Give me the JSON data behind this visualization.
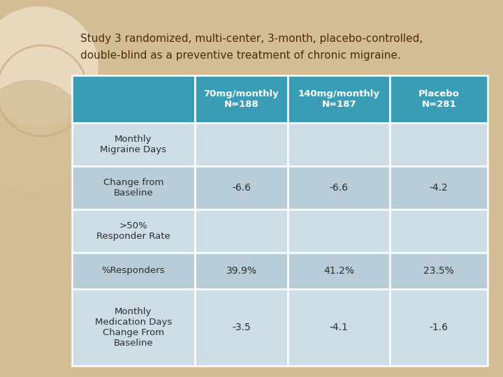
{
  "title_line1": "Study 3 randomized, multi-center, 3-month, placebo-controlled,",
  "title_line2": "double-blind as a preventive treatment of chronic migraine.",
  "title_color": "#4a2c0a",
  "bg_color": "#d4bc96",
  "header_bg": "#3a9db5",
  "header_text_color": "#ffffff",
  "row_text_color": "#2c2c2c",
  "col_headers": [
    "70mg/monthly\nN=188",
    "140mg/monthly\nN=187",
    "Placebo\nN=281"
  ],
  "row_labels": [
    "Monthly\nMigraine Days",
    "Change from\nBaseline",
    ">50%\nResponder Rate",
    "%Responders",
    "Monthly\nMedication Days\nChange From\nBaseline"
  ],
  "cell_data": [
    [
      "",
      "",
      ""
    ],
    [
      "-6.6",
      "-6.6",
      "-4.2"
    ],
    [
      "",
      "",
      ""
    ],
    [
      "39.9%",
      "41.2%",
      "23.5%"
    ],
    [
      "-3.5",
      "-4.1",
      "-1.6"
    ]
  ],
  "row_colors": [
    "#ccdde5",
    "#b8cdd8",
    "#ccdde5",
    "#b8cdd8",
    "#ccdde5"
  ],
  "circle1_color": "#e8d9be",
  "circle2_color": "#d4c09a",
  "circle3_color": "#c8aa80",
  "circle4_color": "#e0cfa8"
}
